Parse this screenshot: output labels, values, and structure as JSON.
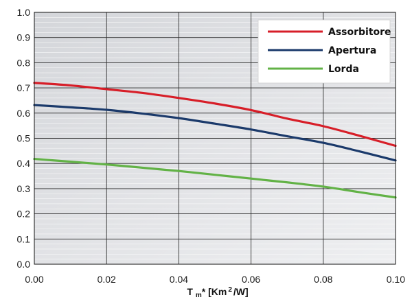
{
  "chart_data": {
    "type": "line",
    "x_tick_labels": [
      "0.00",
      "0.02",
      "0.04",
      "0.06",
      "0.08",
      "0.10"
    ],
    "y_tick_labels": [
      "0.0",
      "0.1",
      "0.2",
      "0.3",
      "0.4",
      "0.5",
      "0.6",
      "0.7",
      "0.8",
      "0.9",
      "1.0"
    ],
    "xlim": [
      0,
      0.1
    ],
    "ylim": [
      0,
      1.0
    ],
    "grid": true,
    "legend_position": "top-right",
    "xlabel": {
      "base": "T",
      "subscript": "m",
      "mid": "* [Km",
      "superscript": "2",
      "end": "/W]"
    },
    "ylabel": "",
    "title": "",
    "series": [
      {
        "name": "Assorbitore",
        "color": "#d71e28",
        "x": [
          0.0,
          0.01,
          0.02,
          0.03,
          0.04,
          0.05,
          0.06,
          0.07,
          0.08,
          0.09,
          0.1
        ],
        "y": [
          0.72,
          0.71,
          0.695,
          0.68,
          0.66,
          0.638,
          0.612,
          0.578,
          0.548,
          0.51,
          0.47
        ]
      },
      {
        "name": "Apertura",
        "color": "#1b3a6b",
        "x": [
          0.0,
          0.01,
          0.02,
          0.03,
          0.04,
          0.05,
          0.06,
          0.07,
          0.08,
          0.09,
          0.1
        ],
        "y": [
          0.632,
          0.623,
          0.613,
          0.598,
          0.58,
          0.558,
          0.535,
          0.508,
          0.482,
          0.448,
          0.412
        ]
      },
      {
        "name": "Lorda",
        "color": "#62b246",
        "x": [
          0.0,
          0.01,
          0.02,
          0.03,
          0.04,
          0.05,
          0.06,
          0.07,
          0.08,
          0.09,
          0.1
        ],
        "y": [
          0.418,
          0.407,
          0.396,
          0.383,
          0.37,
          0.355,
          0.34,
          0.325,
          0.308,
          0.286,
          0.265
        ]
      }
    ]
  }
}
